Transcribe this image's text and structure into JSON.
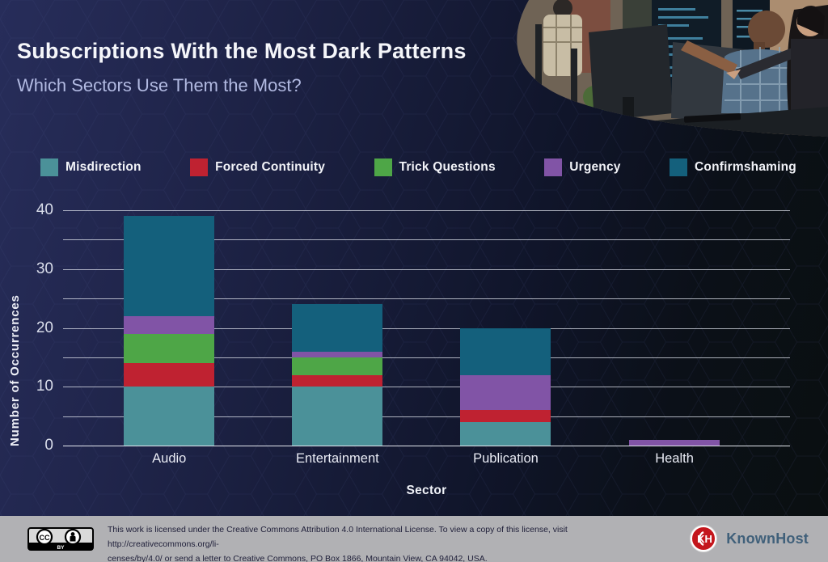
{
  "header": {
    "title": "Subscriptions With the Most Dark Patterns",
    "subtitle": "Which Sectors Use Them the Most?"
  },
  "chart_data": {
    "type": "bar",
    "stacked": true,
    "categories": [
      "Audio",
      "Entertainment",
      "Publication",
      "Health"
    ],
    "series": [
      {
        "name": "Misdirection",
        "color": "#4b9199",
        "values": [
          10,
          10,
          4,
          0
        ]
      },
      {
        "name": "Forced Continuity",
        "color": "#bf2231",
        "values": [
          4,
          2,
          2,
          0
        ]
      },
      {
        "name": "Trick Questions",
        "color": "#4ea647",
        "values": [
          5,
          3,
          0,
          0
        ]
      },
      {
        "name": "Urgency",
        "color": "#8154a6",
        "values": [
          3,
          1,
          6,
          1
        ]
      },
      {
        "name": "Confirmshaming",
        "color": "#14607c",
        "values": [
          17,
          8,
          8,
          0
        ]
      }
    ],
    "totals": [
      39,
      24,
      20,
      1
    ],
    "title": "Subscriptions With the Most Dark Patterns",
    "xlabel": "Sector",
    "ylabel": "Number of Occurrences",
    "ylim": [
      0,
      40
    ],
    "ytick_step": 5,
    "ytick_label_step": 10,
    "yticks_labeled": [
      0,
      10,
      20,
      30,
      40
    ],
    "grid": true,
    "legend_position": "top"
  },
  "footer": {
    "line1": "This work is licensed under the Creative Commons Attribution 4.0 International License. To view a copy of this license, visit http://creativecommons.org/li-",
    "line2": "censes/by/4.0/ or send a letter to Creative Commons, PO Box 1866, Mountain View, CA 94042, USA.",
    "cc_circle": "CC",
    "cc_label": "BY",
    "logo_monogram": "KH",
    "brand": "KnownHost",
    "brand_color": "#c4161c"
  }
}
